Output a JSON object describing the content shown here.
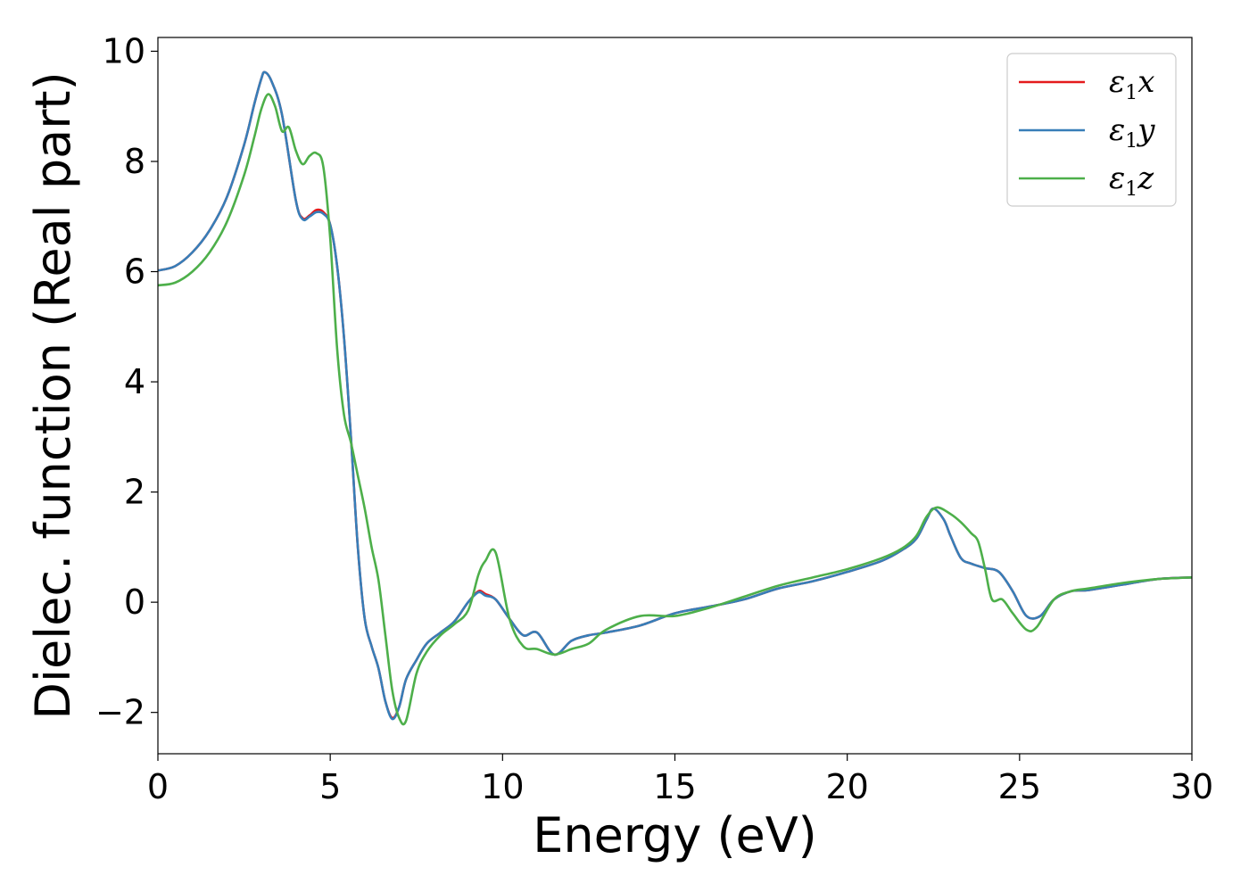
{
  "chart_data": {
    "type": "line",
    "xlabel": "Energy (eV)",
    "ylabel": "Dielec. function (Real part)",
    "xlim": [
      0,
      30
    ],
    "ylim": [
      -2.75,
      10.25
    ],
    "xticks": [
      0,
      5,
      10,
      15,
      20,
      25,
      30
    ],
    "yticks": [
      -2,
      0,
      2,
      4,
      6,
      8,
      10
    ],
    "ytick_labels": [
      "−2",
      "0",
      "2",
      "4",
      "6",
      "8",
      "10"
    ],
    "grid": false,
    "legend_position": "top-right",
    "series": [
      {
        "name_symbol": "ε",
        "name_sub": "1",
        "name_suffix": "x",
        "color": "#e41a1c",
        "x": [
          0,
          0.5,
          1,
          1.5,
          2,
          2.5,
          2.8,
          3.0,
          3.1,
          3.3,
          3.6,
          4.0,
          4.2,
          4.4,
          4.6,
          4.8,
          5.0,
          5.2,
          5.4,
          5.6,
          5.8,
          6.0,
          6.2,
          6.4,
          6.6,
          6.8,
          7.0,
          7.2,
          7.5,
          7.8,
          8.2,
          8.6,
          9.0,
          9.3,
          9.5,
          9.8,
          10.2,
          10.6,
          11.0,
          11.5,
          12.0,
          12.5,
          13.0,
          14.0,
          15.0,
          16.0,
          17.0,
          18.0,
          19.0,
          20.0,
          21.0,
          21.6,
          22.0,
          22.3,
          22.5,
          22.8,
          23.0,
          23.3,
          23.6,
          24.0,
          24.4,
          24.8,
          25.2,
          25.6,
          26.0,
          26.5,
          27.0,
          28.0,
          29.0,
          30.0
        ],
        "y": [
          6.02,
          6.1,
          6.35,
          6.75,
          7.35,
          8.3,
          9.05,
          9.5,
          9.62,
          9.45,
          8.85,
          7.3,
          6.97,
          7.02,
          7.12,
          7.08,
          6.85,
          6.1,
          4.8,
          3.0,
          1.0,
          -0.3,
          -0.8,
          -1.2,
          -1.8,
          -2.1,
          -1.9,
          -1.4,
          -1.05,
          -0.75,
          -0.55,
          -0.35,
          0.0,
          0.2,
          0.15,
          0.05,
          -0.3,
          -0.6,
          -0.55,
          -0.95,
          -0.7,
          -0.6,
          -0.55,
          -0.42,
          -0.2,
          -0.08,
          0.05,
          0.25,
          0.38,
          0.55,
          0.75,
          0.95,
          1.15,
          1.5,
          1.7,
          1.5,
          1.2,
          0.8,
          0.7,
          0.62,
          0.55,
          0.2,
          -0.25,
          -0.25,
          0.05,
          0.2,
          0.22,
          0.32,
          0.42,
          0.45
        ]
      },
      {
        "name_symbol": "ε",
        "name_sub": "1",
        "name_suffix": "y",
        "color": "#377eb8",
        "x": [
          0,
          0.5,
          1,
          1.5,
          2,
          2.5,
          2.8,
          3.0,
          3.1,
          3.3,
          3.6,
          4.0,
          4.2,
          4.4,
          4.6,
          4.8,
          5.0,
          5.2,
          5.4,
          5.6,
          5.8,
          6.0,
          6.2,
          6.4,
          6.6,
          6.8,
          7.0,
          7.2,
          7.5,
          7.8,
          8.2,
          8.6,
          9.0,
          9.3,
          9.5,
          9.8,
          10.2,
          10.6,
          11.0,
          11.5,
          12.0,
          12.5,
          13.0,
          14.0,
          15.0,
          16.0,
          17.0,
          18.0,
          19.0,
          20.0,
          21.0,
          21.6,
          22.0,
          22.3,
          22.5,
          22.8,
          23.0,
          23.3,
          23.6,
          24.0,
          24.4,
          24.8,
          25.2,
          25.6,
          26.0,
          26.5,
          27.0,
          28.0,
          29.0,
          30.0
        ],
        "y": [
          6.02,
          6.1,
          6.35,
          6.75,
          7.35,
          8.3,
          9.05,
          9.5,
          9.62,
          9.45,
          8.85,
          7.3,
          6.95,
          7.0,
          7.08,
          7.05,
          6.85,
          6.1,
          4.8,
          3.0,
          1.0,
          -0.3,
          -0.8,
          -1.2,
          -1.8,
          -2.12,
          -1.9,
          -1.4,
          -1.05,
          -0.75,
          -0.55,
          -0.35,
          0.0,
          0.18,
          0.12,
          0.05,
          -0.3,
          -0.6,
          -0.55,
          -0.95,
          -0.7,
          -0.6,
          -0.55,
          -0.42,
          -0.2,
          -0.08,
          0.05,
          0.25,
          0.38,
          0.55,
          0.75,
          0.95,
          1.15,
          1.5,
          1.7,
          1.5,
          1.2,
          0.8,
          0.7,
          0.62,
          0.55,
          0.2,
          -0.25,
          -0.25,
          0.05,
          0.2,
          0.22,
          0.32,
          0.42,
          0.45
        ]
      },
      {
        "name_symbol": "ε",
        "name_sub": "1",
        "name_suffix": "z",
        "color": "#4daf4a",
        "x": [
          0,
          0.5,
          1,
          1.5,
          2,
          2.5,
          2.8,
          3.0,
          3.2,
          3.4,
          3.6,
          3.8,
          4.0,
          4.2,
          4.4,
          4.6,
          4.8,
          5.0,
          5.2,
          5.4,
          5.6,
          5.8,
          6.0,
          6.2,
          6.4,
          6.6,
          6.8,
          7.0,
          7.2,
          7.5,
          7.8,
          8.2,
          8.6,
          9.0,
          9.3,
          9.5,
          9.8,
          10.2,
          10.6,
          11.0,
          11.5,
          12.0,
          12.5,
          13.0,
          14.0,
          15.0,
          16.0,
          17.0,
          18.0,
          19.0,
          20.0,
          21.0,
          21.6,
          22.0,
          22.3,
          22.6,
          23.0,
          23.3,
          23.6,
          23.8,
          24.0,
          24.2,
          24.5,
          24.8,
          25.2,
          25.5,
          26.0,
          26.5,
          27.0,
          28.0,
          29.0,
          30.0
        ],
        "y": [
          5.75,
          5.8,
          6.0,
          6.35,
          6.9,
          7.75,
          8.45,
          8.95,
          9.22,
          9.0,
          8.55,
          8.62,
          8.2,
          7.95,
          8.1,
          8.15,
          7.9,
          6.6,
          4.6,
          3.4,
          2.9,
          2.3,
          1.7,
          1.0,
          0.4,
          -0.6,
          -1.6,
          -2.1,
          -2.15,
          -1.3,
          -0.9,
          -0.6,
          -0.4,
          -0.15,
          0.5,
          0.75,
          0.9,
          -0.3,
          -0.8,
          -0.85,
          -0.95,
          -0.85,
          -0.75,
          -0.5,
          -0.25,
          -0.25,
          -0.1,
          0.1,
          0.3,
          0.45,
          0.6,
          0.8,
          0.98,
          1.2,
          1.55,
          1.72,
          1.6,
          1.45,
          1.25,
          1.1,
          0.6,
          0.05,
          0.05,
          -0.2,
          -0.5,
          -0.45,
          0.05,
          0.2,
          0.25,
          0.35,
          0.42,
          0.45
        ]
      }
    ]
  }
}
